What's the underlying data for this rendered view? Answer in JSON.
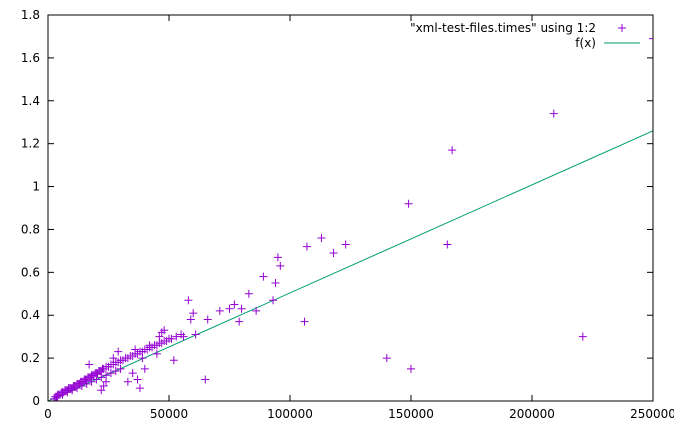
{
  "chart_data": {
    "type": "scatter",
    "title": "",
    "xlabel": "",
    "ylabel": "",
    "xlim": [
      0,
      250000
    ],
    "ylim": [
      0,
      1.8
    ],
    "x_ticks": [
      "0",
      "50000",
      "100000",
      "150000",
      "200000",
      "250000"
    ],
    "y_ticks": [
      "0",
      "0.2",
      "0.4",
      "0.6",
      "0.8",
      "1",
      "1.2",
      "1.4",
      "1.6",
      "1.8"
    ],
    "grid": false,
    "legend_position": "top-right",
    "series": [
      {
        "name": "\"xml-test-files.times\" using 1:2",
        "kind": "points",
        "marker": "+",
        "color": "#9400d3",
        "x": [
          2500,
          3000,
          3500,
          4000,
          4500,
          5000,
          5500,
          6000,
          6500,
          7000,
          7500,
          8000,
          8500,
          9000,
          9500,
          10000,
          10500,
          11000,
          11500,
          12000,
          12500,
          13000,
          13500,
          14000,
          14500,
          15000,
          15500,
          16000,
          16500,
          17000,
          17500,
          18000,
          18500,
          19000,
          19500,
          20000,
          20500,
          21000,
          21500,
          22000,
          22500,
          23000,
          24000,
          25000,
          26000,
          27000,
          28000,
          29000,
          30000,
          31000,
          32000,
          33000,
          34000,
          35000,
          36000,
          37000,
          38000,
          39000,
          40000,
          41000,
          42000,
          43000,
          44000,
          45000,
          46000,
          47000,
          48000,
          49000,
          50000,
          51000,
          53000,
          55000,
          4000,
          6000,
          8000,
          10000,
          12000,
          14000,
          16000,
          18000,
          20000,
          22000,
          24000,
          26000,
          28000,
          30000,
          17000,
          22000,
          23000,
          24000,
          27000,
          29000,
          33000,
          35000,
          36000,
          37000,
          38000,
          39000,
          40000,
          42000,
          45000,
          46000,
          47000,
          48000,
          52000,
          56000,
          58000,
          59000,
          60000,
          61000,
          65000,
          66000,
          71000,
          75000,
          77000,
          79000,
          80000,
          83000,
          86000,
          89000,
          93000,
          94000,
          95000,
          96000,
          106000,
          107000,
          113000,
          118000,
          123000,
          140000,
          149000,
          150000,
          165000,
          167000,
          209000,
          221000,
          250000
        ],
        "y": [
          0.01,
          0.02,
          0.02,
          0.03,
          0.03,
          0.03,
          0.04,
          0.04,
          0.04,
          0.05,
          0.05,
          0.05,
          0.06,
          0.06,
          0.06,
          0.06,
          0.07,
          0.07,
          0.07,
          0.08,
          0.08,
          0.08,
          0.09,
          0.09,
          0.09,
          0.1,
          0.1,
          0.1,
          0.11,
          0.11,
          0.11,
          0.12,
          0.12,
          0.12,
          0.13,
          0.13,
          0.13,
          0.14,
          0.14,
          0.14,
          0.15,
          0.15,
          0.16,
          0.16,
          0.17,
          0.17,
          0.18,
          0.18,
          0.19,
          0.19,
          0.2,
          0.2,
          0.21,
          0.21,
          0.22,
          0.22,
          0.23,
          0.23,
          0.24,
          0.24,
          0.25,
          0.25,
          0.26,
          0.26,
          0.27,
          0.27,
          0.28,
          0.28,
          0.29,
          0.29,
          0.3,
          0.31,
          0.02,
          0.03,
          0.04,
          0.05,
          0.06,
          0.07,
          0.08,
          0.09,
          0.1,
          0.11,
          0.12,
          0.13,
          0.14,
          0.15,
          0.17,
          0.05,
          0.07,
          0.09,
          0.2,
          0.23,
          0.09,
          0.13,
          0.24,
          0.1,
          0.06,
          0.2,
          0.15,
          0.26,
          0.22,
          0.3,
          0.32,
          0.33,
          0.19,
          0.3,
          0.47,
          0.38,
          0.41,
          0.31,
          0.1,
          0.38,
          0.42,
          0.43,
          0.45,
          0.37,
          0.43,
          0.5,
          0.42,
          0.58,
          0.47,
          0.55,
          0.67,
          0.63,
          0.37,
          0.72,
          0.76,
          0.69,
          0.73,
          0.2,
          0.92,
          0.15,
          0.73,
          1.17,
          1.34,
          0.3,
          1.69
        ]
      },
      {
        "name": "f(x)",
        "kind": "line",
        "color": "#009e73",
        "x": [
          0,
          250000
        ],
        "y": [
          0,
          1.26
        ]
      }
    ]
  }
}
